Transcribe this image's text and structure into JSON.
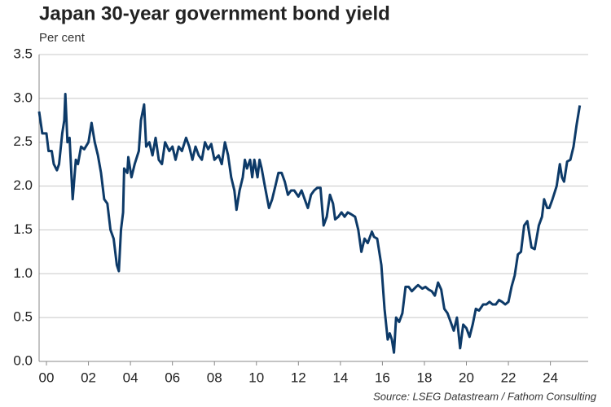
{
  "chart_data": {
    "type": "line",
    "title": "Japan 30-year government bond yield",
    "subtitle": "Per cent",
    "source": "Source: LSEG Datastream / Fathom Consulting",
    "grid": true,
    "xlim": [
      1999.65,
      2025.8
    ],
    "ylim": [
      0,
      3.5
    ],
    "xticks": [
      {
        "value": 2000,
        "label": "00"
      },
      {
        "value": 2002,
        "label": "02"
      },
      {
        "value": 2004,
        "label": "04"
      },
      {
        "value": 2006,
        "label": "06"
      },
      {
        "value": 2008,
        "label": "08"
      },
      {
        "value": 2010,
        "label": "10"
      },
      {
        "value": 2012,
        "label": "12"
      },
      {
        "value": 2014,
        "label": "14"
      },
      {
        "value": 2016,
        "label": "16"
      },
      {
        "value": 2018,
        "label": "18"
      },
      {
        "value": 2020,
        "label": "20"
      },
      {
        "value": 2022,
        "label": "22"
      },
      {
        "value": 2024,
        "label": "24"
      }
    ],
    "yticks": [
      {
        "value": 0,
        "label": "0.0"
      },
      0.5,
      {
        "value": 1,
        "label": "1.0"
      },
      1.5,
      {
        "value": 2,
        "label": "2.0"
      },
      2.5,
      {
        "value": 3,
        "label": "3.0"
      },
      3.5
    ],
    "x": [
      1999.65,
      1999.8,
      2000.0,
      2000.1,
      2000.25,
      2000.35,
      2000.5,
      2000.6,
      2000.75,
      2000.85,
      2000.9,
      2001.0,
      2001.1,
      2001.25,
      2001.4,
      2001.5,
      2001.65,
      2001.8,
      2002.0,
      2002.15,
      2002.3,
      2002.45,
      2002.6,
      2002.75,
      2002.9,
      2003.05,
      2003.2,
      2003.35,
      2003.45,
      2003.55,
      2003.65,
      2003.7,
      2003.85,
      2003.9,
      2004.05,
      2004.2,
      2004.4,
      2004.5,
      2004.65,
      2004.75,
      2004.9,
      2005.05,
      2005.2,
      2005.35,
      2005.5,
      2005.65,
      2005.85,
      2006.0,
      2006.15,
      2006.3,
      2006.45,
      2006.65,
      2006.8,
      2006.95,
      2007.1,
      2007.25,
      2007.4,
      2007.55,
      2007.7,
      2007.85,
      2008.0,
      2008.2,
      2008.35,
      2008.5,
      2008.65,
      2008.8,
      2008.95,
      2009.05,
      2009.2,
      2009.35,
      2009.45,
      2009.55,
      2009.7,
      2009.8,
      2009.9,
      2010.05,
      2010.15,
      2010.25,
      2010.4,
      2010.6,
      2010.75,
      2010.9,
      2011.05,
      2011.2,
      2011.35,
      2011.5,
      2011.65,
      2011.8,
      2012.0,
      2012.15,
      2012.3,
      2012.45,
      2012.6,
      2012.75,
      2012.9,
      2013.05,
      2013.2,
      2013.35,
      2013.5,
      2013.65,
      2013.75,
      2013.9,
      2014.05,
      2014.2,
      2014.35,
      2014.5,
      2014.7,
      2014.85,
      2015.0,
      2015.15,
      2015.3,
      2015.5,
      2015.6,
      2015.75,
      2015.95,
      2016.1,
      2016.25,
      2016.35,
      2016.45,
      2016.55,
      2016.65,
      2016.8,
      2016.95,
      2017.1,
      2017.25,
      2017.4,
      2017.6,
      2017.7,
      2017.9,
      2018.05,
      2018.2,
      2018.35,
      2018.5,
      2018.65,
      2018.8,
      2018.95,
      2019.1,
      2019.25,
      2019.4,
      2019.55,
      2019.7,
      2019.85,
      2020.0,
      2020.15,
      2020.3,
      2020.45,
      2020.6,
      2020.8,
      2020.95,
      2021.1,
      2021.25,
      2021.4,
      2021.55,
      2021.7,
      2021.85,
      2022.0,
      2022.15,
      2022.3,
      2022.45,
      2022.6,
      2022.75,
      2022.9,
      2023.0,
      2023.1,
      2023.25,
      2023.45,
      2023.6,
      2023.7,
      2023.85,
      2023.95,
      2024.1,
      2024.3,
      2024.45,
      2024.55,
      2024.65,
      2024.8,
      2024.95,
      2025.1,
      2025.25,
      2025.4
    ],
    "series": [
      {
        "name": "Japan 30-year government bond yield",
        "color": "#0d3a68",
        "values": [
          2.85,
          2.6,
          2.6,
          2.4,
          2.4,
          2.25,
          2.18,
          2.25,
          2.6,
          2.75,
          3.05,
          2.5,
          2.55,
          1.85,
          2.3,
          2.25,
          2.45,
          2.42,
          2.5,
          2.72,
          2.5,
          2.35,
          2.15,
          1.85,
          1.8,
          1.5,
          1.4,
          1.1,
          1.03,
          1.5,
          1.7,
          2.2,
          2.15,
          2.33,
          2.1,
          2.25,
          2.4,
          2.75,
          2.93,
          2.45,
          2.5,
          2.35,
          2.55,
          2.3,
          2.25,
          2.5,
          2.4,
          2.45,
          2.3,
          2.45,
          2.4,
          2.55,
          2.45,
          2.3,
          2.45,
          2.35,
          2.3,
          2.5,
          2.42,
          2.48,
          2.3,
          2.35,
          2.25,
          2.5,
          2.35,
          2.1,
          1.95,
          1.73,
          1.95,
          2.1,
          2.3,
          2.2,
          2.3,
          2.1,
          2.3,
          2.1,
          2.3,
          2.2,
          2.0,
          1.75,
          1.85,
          2.0,
          2.15,
          2.15,
          2.05,
          1.9,
          1.95,
          1.95,
          1.88,
          1.95,
          1.85,
          1.75,
          1.9,
          1.95,
          1.98,
          1.98,
          1.55,
          1.65,
          1.9,
          1.8,
          1.62,
          1.65,
          1.7,
          1.65,
          1.7,
          1.68,
          1.65,
          1.5,
          1.25,
          1.4,
          1.35,
          1.48,
          1.42,
          1.4,
          1.1,
          0.6,
          0.25,
          0.32,
          0.25,
          0.1,
          0.5,
          0.45,
          0.55,
          0.85,
          0.85,
          0.8,
          0.85,
          0.87,
          0.83,
          0.85,
          0.82,
          0.8,
          0.75,
          0.9,
          0.82,
          0.6,
          0.55,
          0.45,
          0.35,
          0.5,
          0.15,
          0.42,
          0.38,
          0.28,
          0.42,
          0.6,
          0.58,
          0.65,
          0.65,
          0.68,
          0.65,
          0.65,
          0.7,
          0.68,
          0.65,
          0.68,
          0.85,
          0.98,
          1.22,
          1.25,
          1.55,
          1.6,
          1.45,
          1.3,
          1.28,
          1.55,
          1.65,
          1.85,
          1.75,
          1.75,
          1.85,
          2.0,
          2.25,
          2.1,
          2.05,
          2.28,
          2.3,
          2.45,
          2.7,
          2.92
        ]
      }
    ]
  }
}
